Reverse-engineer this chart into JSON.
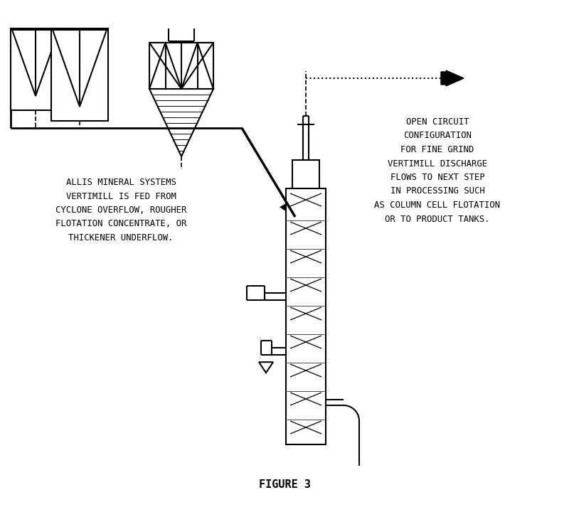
{
  "title": "FIGURE 3",
  "left_text": "ALLIS MINERAL SYSTEMS\nVERTIMILL IS FED FROM\nCYCLONE OVERFLOW, ROUGHER\nFLOTATION CONCENTRATE, OR\nTHICKENER UNDERFLOW.",
  "right_text": "OPEN CIRCUIT\nCONFIGURATION\nFOR FINE GRIND\nVERTIMILL DISCHARGE\nFLOWS TO NEXT STEP\nIN PROCESSING SUCH\nAS COLUMN CELL FLOTATION\nOR TO PRODUCT TANKS.",
  "bg_color": "#ffffff",
  "line_color": "#000000",
  "fig_width": 8.0,
  "fig_height": 7.2,
  "dpi": 100
}
